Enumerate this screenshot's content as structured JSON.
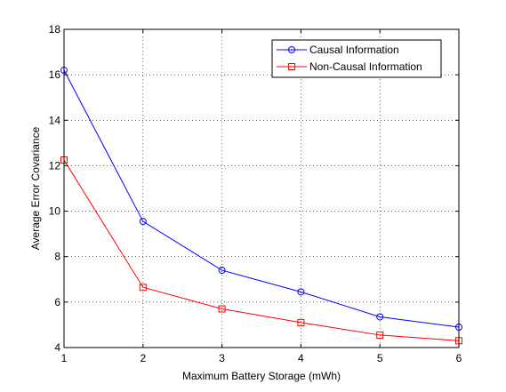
{
  "chart_data": {
    "type": "line",
    "title": "",
    "xlabel": "Maximum Battery Storage (mWh)",
    "ylabel": "Average Error Covariance",
    "xlim": [
      1,
      6
    ],
    "ylim": [
      4,
      18
    ],
    "xticks": [
      1,
      2,
      3,
      4,
      5,
      6
    ],
    "yticks": [
      4,
      6,
      8,
      10,
      12,
      14,
      16,
      18
    ],
    "grid": true,
    "legend_position": "top-right",
    "x": [
      1,
      2,
      3,
      4,
      5,
      6
    ],
    "series": [
      {
        "name": "Causal Information",
        "values": [
          16.2,
          9.55,
          7.4,
          6.45,
          5.35,
          4.9
        ],
        "color": "#0000ff",
        "marker": "circle"
      },
      {
        "name": "Non-Causal Information",
        "values": [
          12.25,
          6.65,
          5.7,
          5.1,
          4.55,
          4.3
        ],
        "color": "#ff0000",
        "marker": "square"
      }
    ]
  }
}
